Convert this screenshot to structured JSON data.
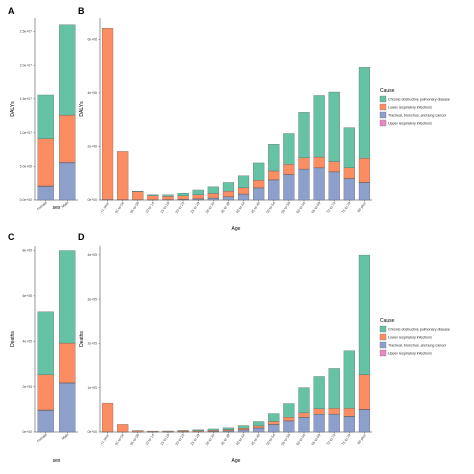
{
  "colors": {
    "Chronic obstructive pulmonary disease": "#66c2a5",
    "Lower respiratory infections": "#fc8d62",
    "Tracheal, bronchus, and lung cancer": "#8da0cb",
    "Upper respiratory infections": "#e78ac3"
  },
  "chart_data": [
    {
      "panel": "A",
      "type": "bar",
      "stacked": true,
      "xlabel": "sex",
      "ylabel": "DALYs",
      "ylim": [
        0,
        27000000
      ],
      "yticks": [
        {
          "value": 0,
          "label": "0.0e+00"
        },
        {
          "value": 5000000,
          "label": "5.0e+06"
        },
        {
          "value": 10000000,
          "label": "1.0e+07"
        },
        {
          "value": 15000000,
          "label": "1.5e+07"
        },
        {
          "value": 20000000,
          "label": "2.0e+07"
        },
        {
          "value": 25000000,
          "label": "2.5e+07"
        }
      ],
      "categories": [
        "Female",
        "Male"
      ],
      "series": [
        {
          "name": "Tracheal, bronchus, and lung cancer",
          "values": [
            2000000,
            5500000
          ]
        },
        {
          "name": "Upper respiratory infections",
          "values": [
            80000,
            100000
          ]
        },
        {
          "name": "Lower respiratory infections",
          "values": [
            7000000,
            7000000
          ]
        },
        {
          "name": "Chronic obstructive pulmonary disease",
          "values": [
            6500000,
            13400000
          ]
        }
      ]
    },
    {
      "panel": "B",
      "type": "bar",
      "stacked": true,
      "xlabel": "Age",
      "ylabel": "DALYs",
      "ylim": [
        0,
        6800000
      ],
      "yticks": [
        {
          "value": 0,
          "label": "0e+00"
        },
        {
          "value": 2000000,
          "label": "2e+06"
        },
        {
          "value": 4000000,
          "label": "4e+06"
        },
        {
          "value": 6000000,
          "label": "6e+06"
        }
      ],
      "categories": [
        "<1 year",
        "01 to 04",
        "05 to 09",
        "10 to 14",
        "15 to 19",
        "20 to 24",
        "25 to 29",
        "30 to 34",
        "35 to 39",
        "40 to 44",
        "45 to 49",
        "50 to 54",
        "55 to 59",
        "60 to 64",
        "65 to 69",
        "70 to 74",
        "75 to 79",
        "80 plus"
      ],
      "series": [
        {
          "name": "Tracheal, bronchus, and lung cancer",
          "values": [
            0,
            0,
            0,
            5000,
            10000,
            20000,
            40000,
            70000,
            120000,
            220000,
            450000,
            750000,
            950000,
            1150000,
            1200000,
            1050000,
            800000,
            650000
          ]
        },
        {
          "name": "Upper respiratory infections",
          "values": [
            20000,
            15000,
            10000,
            5000,
            5000,
            5000,
            5000,
            5000,
            5000,
            5000,
            5000,
            5000,
            5000,
            5000,
            5000,
            5000,
            5000,
            10000
          ]
        },
        {
          "name": "Lower respiratory infections",
          "values": [
            6400000,
            1800000,
            300000,
            150000,
            120000,
            130000,
            150000,
            170000,
            200000,
            230000,
            280000,
            330000,
            380000,
            420000,
            400000,
            380000,
            400000,
            900000
          ]
        },
        {
          "name": "Chronic obstructive pulmonary disease",
          "values": [
            0,
            0,
            20000,
            40000,
            60000,
            100000,
            180000,
            250000,
            330000,
            450000,
            650000,
            1000000,
            1150000,
            1700000,
            2300000,
            2600000,
            1500000,
            3400000
          ]
        }
      ]
    },
    {
      "panel": "C",
      "type": "bar",
      "stacked": true,
      "xlabel": "sex",
      "ylabel": "Deaths",
      "ylim": [
        0,
        820000
      ],
      "yticks": [
        {
          "value": 0,
          "label": "0e+00"
        },
        {
          "value": 200000,
          "label": "2e+05"
        },
        {
          "value": 400000,
          "label": "4e+05"
        },
        {
          "value": 600000,
          "label": "6e+05"
        },
        {
          "value": 800000,
          "label": "8e+05"
        }
      ],
      "categories": [
        "Female",
        "Male"
      ],
      "series": [
        {
          "name": "Tracheal, bronchus, and lung cancer",
          "values": [
            95000,
            215000
          ]
        },
        {
          "name": "Upper respiratory infections",
          "values": [
            2000,
            2000
          ]
        },
        {
          "name": "Lower respiratory infections",
          "values": [
            155000,
            175000
          ]
        },
        {
          "name": "Chronic obstructive pulmonary disease",
          "values": [
            278000,
            408000
          ]
        }
      ]
    },
    {
      "panel": "D",
      "type": "bar",
      "stacked": true,
      "xlabel": "Age",
      "ylabel": "Deaths",
      "ylim": [
        0,
        420000
      ],
      "yticks": [
        {
          "value": 0,
          "label": "0e+00"
        },
        {
          "value": 100000,
          "label": "1e+05"
        },
        {
          "value": 200000,
          "label": "2e+05"
        },
        {
          "value": 300000,
          "label": "3e+05"
        },
        {
          "value": 400000,
          "label": "4e+05"
        }
      ],
      "categories": [
        "<1 year",
        "01 to 04",
        "05 to 09",
        "10 to 14",
        "15 to 19",
        "20 to 24",
        "25 to 29",
        "30 to 34",
        "35 to 39",
        "40 to 44",
        "45 to 49",
        "50 to 54",
        "55 to 59",
        "60 to 64",
        "65 to 69",
        "70 to 74",
        "75 to 79",
        "80 plus"
      ],
      "series": [
        {
          "name": "Tracheal, bronchus, and lung cancer",
          "values": [
            0,
            0,
            0,
            0,
            0,
            500,
            800,
            1500,
            2500,
            5000,
            9000,
            17000,
            25000,
            33000,
            40000,
            40000,
            35000,
            50000
          ]
        },
        {
          "name": "Upper respiratory infections",
          "values": [
            300,
            200,
            100,
            100,
            100,
            100,
            100,
            100,
            100,
            100,
            200,
            200,
            300,
            300,
            400,
            500,
            600,
            1500
          ]
        },
        {
          "name": "Lower respiratory infections",
          "values": [
            65000,
            17000,
            2500,
            1500,
            1500,
            1800,
            2000,
            2300,
            2800,
            3500,
            4500,
            6500,
            8000,
            10000,
            12000,
            13000,
            18000,
            78000
          ]
        },
        {
          "name": "Chronic obstructive pulmonary disease",
          "values": [
            0,
            0,
            200,
            500,
            700,
            1000,
            2000,
            3000,
            4000,
            6000,
            10000,
            18000,
            31000,
            57000,
            73000,
            90000,
            130000,
            270000
          ]
        }
      ]
    }
  ],
  "legend": {
    "title": "Cause",
    "items": [
      "Chronic obstructive pulmonary disease",
      "Lower respiratory infections",
      "Tracheal, bronchus, and lung cancer",
      "Upper respiratory infections"
    ]
  }
}
